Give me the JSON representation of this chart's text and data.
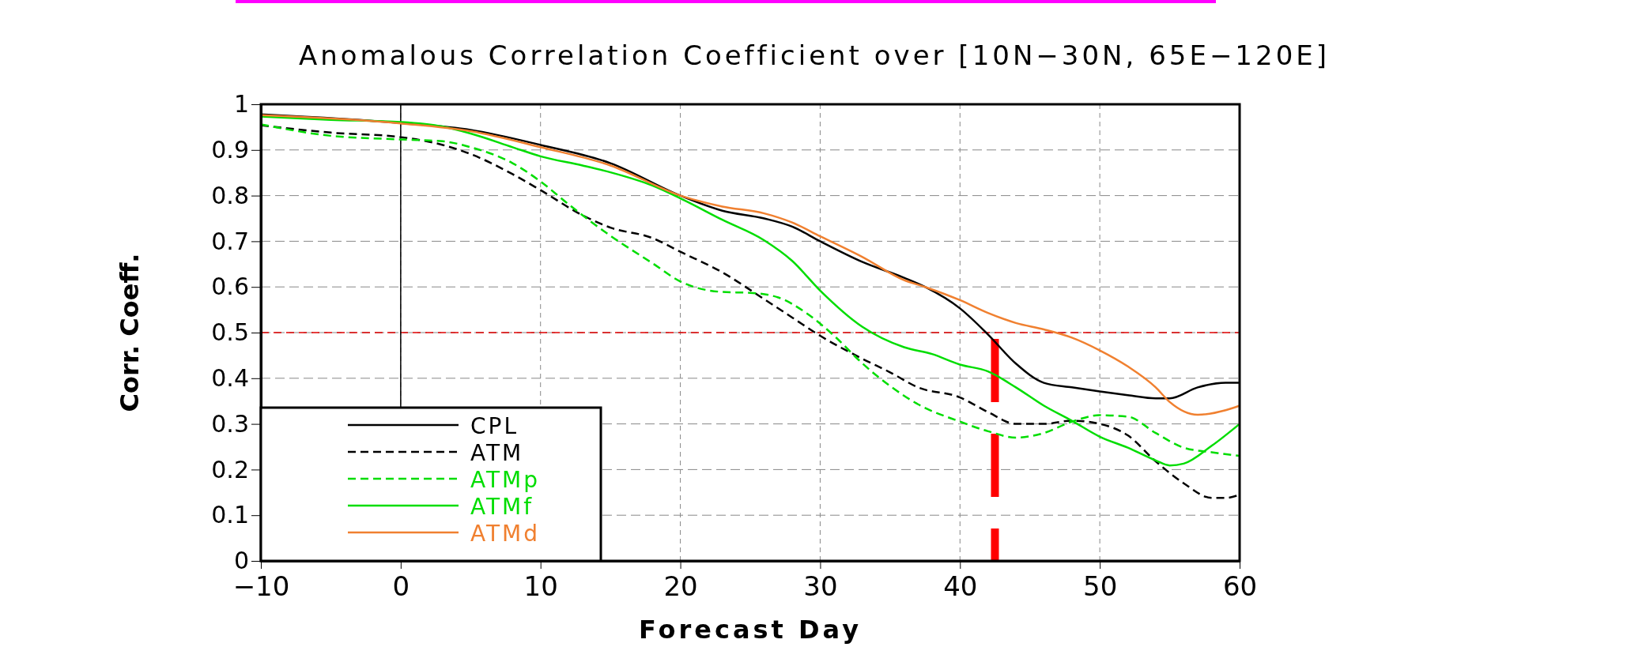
{
  "chart_data": {
    "type": "line",
    "title": "Anomalous Correlation Coefficient over [10N−30N, 65E−120E]",
    "xlabel": "Forecast Day",
    "ylabel": "Corr. Coeff.",
    "xlim": [
      -10,
      60
    ],
    "xticks": [
      {
        "value": -10,
        "label": "−10"
      },
      0,
      10,
      20,
      30,
      40,
      50,
      60
    ],
    "ylim": [
      0,
      1
    ],
    "yticks": [
      0,
      0.1,
      0.2,
      0.3,
      0.4,
      0.5,
      0.6,
      0.7,
      0.8,
      0.9,
      1
    ],
    "grid": true,
    "legend": "bottom left",
    "marker": "none",
    "ref_lines": [
      {
        "axis": "y",
        "value": 0.5,
        "color": "#e00000",
        "line_style": "dashed"
      },
      {
        "axis": "x",
        "value": 0,
        "color": "#000000",
        "line_style": "solid"
      },
      {
        "axis": "x",
        "value": 42.5,
        "color": "#ff0000",
        "line_style": "dashed"
      }
    ],
    "series": [
      {
        "name": "CPL",
        "color": "#000000",
        "line_style": "solid",
        "x": [
          -10,
          0,
          5,
          10,
          15,
          20,
          23,
          26,
          28,
          30,
          33,
          36,
          37.5,
          40,
          42,
          44,
          46,
          48,
          50,
          52,
          54,
          55,
          57,
          59,
          60
        ],
        "values": [
          0.978,
          0.959,
          0.944,
          0.911,
          0.871,
          0.8,
          0.767,
          0.75,
          0.732,
          0.7,
          0.655,
          0.62,
          0.6,
          0.553,
          0.496,
          0.432,
          0.39,
          0.38,
          0.371,
          0.363,
          0.356,
          0.356,
          0.38,
          0.39,
          0.39
        ]
      },
      {
        "name": "ATM",
        "color": "#000000",
        "line_style": "dashed",
        "x": [
          -10,
          -5,
          0,
          3,
          5,
          8,
          10,
          13,
          15,
          18,
          20,
          23,
          26,
          28,
          30,
          33,
          35,
          37,
          40,
          42,
          44,
          46,
          48,
          50,
          52,
          54,
          56,
          58,
          59,
          60
        ],
        "values": [
          0.954,
          0.938,
          0.928,
          0.911,
          0.891,
          0.847,
          0.812,
          0.757,
          0.73,
          0.707,
          0.677,
          0.632,
          0.573,
          0.533,
          0.493,
          0.443,
          0.413,
          0.38,
          0.358,
          0.326,
          0.3,
          0.3,
          0.307,
          0.3,
          0.275,
          0.218,
          0.17,
          0.138,
          0.138,
          0.145
        ]
      },
      {
        "name": "ATMp",
        "color": "#00dd00",
        "line_style": "dashed",
        "x": [
          -10,
          -5,
          0,
          3,
          5,
          8,
          10,
          12,
          15,
          18,
          20,
          23,
          25,
          27,
          29,
          31,
          33,
          35,
          37,
          40,
          42,
          44,
          46,
          48,
          50,
          52,
          54,
          56,
          58,
          60
        ],
        "values": [
          0.956,
          0.931,
          0.923,
          0.919,
          0.906,
          0.871,
          0.831,
          0.781,
          0.712,
          0.652,
          0.612,
          0.589,
          0.587,
          0.577,
          0.543,
          0.493,
          0.433,
          0.383,
          0.343,
          0.305,
          0.284,
          0.27,
          0.28,
          0.305,
          0.319,
          0.316,
          0.28,
          0.248,
          0.238,
          0.23
        ]
      },
      {
        "name": "ATMf",
        "color": "#00dd00",
        "line_style": "solid",
        "x": [
          -10,
          -5,
          0,
          3,
          5,
          8,
          10,
          13,
          15,
          18,
          20,
          23,
          26,
          28,
          30,
          33,
          36,
          38,
          40,
          42,
          44,
          46,
          48,
          50,
          52,
          54,
          55,
          56,
          58,
          60
        ],
        "values": [
          0.973,
          0.966,
          0.961,
          0.951,
          0.936,
          0.906,
          0.886,
          0.866,
          0.851,
          0.822,
          0.794,
          0.747,
          0.702,
          0.657,
          0.592,
          0.513,
          0.468,
          0.453,
          0.43,
          0.415,
          0.38,
          0.34,
          0.307,
          0.272,
          0.248,
          0.22,
          0.209,
          0.213,
          0.252,
          0.3
        ]
      },
      {
        "name": "ATMd",
        "color": "#f08030",
        "line_style": "solid",
        "x": [
          -10,
          0,
          5,
          10,
          15,
          20,
          23,
          26,
          28,
          30,
          33,
          36,
          37.5,
          40,
          42,
          44,
          46,
          48,
          50,
          52,
          54,
          55,
          57,
          59,
          60
        ],
        "values": [
          0.976,
          0.958,
          0.941,
          0.906,
          0.866,
          0.8,
          0.776,
          0.761,
          0.741,
          0.711,
          0.666,
          0.615,
          0.6,
          0.571,
          0.543,
          0.521,
          0.507,
          0.489,
          0.461,
          0.426,
          0.38,
          0.348,
          0.32,
          0.33,
          0.34
        ]
      }
    ]
  }
}
